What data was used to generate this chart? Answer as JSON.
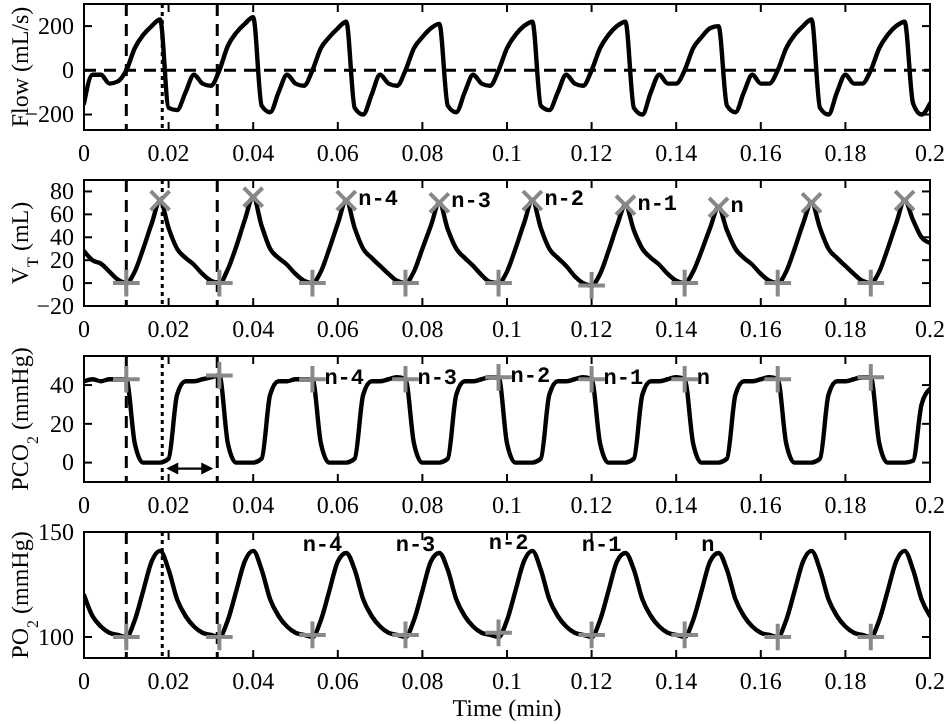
{
  "chart_data": [
    {
      "type": "line",
      "ylabel": "Flow (mL/s)",
      "xlim": [
        0,
        0.2
      ],
      "xticks": [
        0,
        0.02,
        0.04,
        0.06,
        0.08,
        0.1,
        0.12,
        0.14,
        0.16,
        0.18,
        0.2
      ],
      "ylim": [
        -270,
        300
      ],
      "yticks": [
        -200,
        0,
        200
      ],
      "grid": false,
      "x": [
        0,
        0.002,
        0.004,
        0.006,
        0.008,
        0.01,
        0.012,
        0.014,
        0.016,
        0.018,
        0.02,
        0.022,
        0.024,
        0.026,
        0.028,
        0.03,
        0.032,
        0.034,
        0.036,
        0.038,
        0.04,
        0.042,
        0.044,
        0.046,
        0.048,
        0.05,
        0.052,
        0.054,
        0.056,
        0.058,
        0.06,
        0.062,
        0.064,
        0.066,
        0.068,
        0.07,
        0.072,
        0.074,
        0.076,
        0.078,
        0.08,
        0.082,
        0.084,
        0.086,
        0.088,
        0.09,
        0.092,
        0.094,
        0.096,
        0.098,
        0.1,
        0.102,
        0.104,
        0.106,
        0.108,
        0.11,
        0.112,
        0.114,
        0.116,
        0.118,
        0.12,
        0.122,
        0.124,
        0.126,
        0.128,
        0.13,
        0.132,
        0.134,
        0.136,
        0.138,
        0.14,
        0.142,
        0.144,
        0.146,
        0.148,
        0.15,
        0.152,
        0.154,
        0.156,
        0.158,
        0.16,
        0.162,
        0.164,
        0.166,
        0.168,
        0.17,
        0.172,
        0.174,
        0.176,
        0.178,
        0.18,
        0.182,
        0.184,
        0.186,
        0.188,
        0.19,
        0.192,
        0.194,
        0.196,
        0.198,
        0.2
      ],
      "series": [
        {
          "color": "#000000",
          "line_style": "solid",
          "values": [
            -150,
            -20,
            -20,
            -60,
            -50,
            0,
            100,
            160,
            200,
            230,
            -170,
            -180,
            -100,
            -20,
            -60,
            -70,
            0,
            110,
            170,
            210,
            240,
            -160,
            -190,
            -100,
            -20,
            -60,
            -70,
            0,
            100,
            150,
            190,
            220,
            -170,
            -200,
            -110,
            -20,
            -60,
            -70,
            0,
            100,
            150,
            190,
            210,
            -160,
            -190,
            -100,
            -20,
            -60,
            -70,
            0,
            100,
            160,
            200,
            220,
            -160,
            -180,
            -100,
            -20,
            -60,
            -70,
            0,
            100,
            160,
            200,
            220,
            -170,
            -200,
            -100,
            -20,
            -60,
            -60,
            0,
            100,
            150,
            190,
            200,
            -160,
            -190,
            -100,
            -20,
            -60,
            -60,
            0,
            100,
            160,
            200,
            230,
            -170,
            -200,
            -100,
            -20,
            -60,
            -60,
            0,
            100,
            160,
            200,
            220,
            -150,
            -200,
            -150
          ]
        }
      ],
      "ref_lines": [
        {
          "axis": "x",
          "value": 0.01,
          "line_style": "dashed",
          "color": "#000000"
        },
        {
          "axis": "x",
          "value": 0.0185,
          "line_style": "dotted",
          "color": "#000000"
        },
        {
          "axis": "x",
          "value": 0.0315,
          "line_style": "dashed",
          "color": "#000000"
        },
        {
          "axis": "y",
          "value": 0,
          "line_style": "dashed",
          "color": "#000000"
        }
      ]
    },
    {
      "type": "line",
      "ylabel": "V$_{T}$ (mL)",
      "xlim": [
        0,
        0.2
      ],
      "xticks": [
        0,
        0.02,
        0.04,
        0.06,
        0.08,
        0.1,
        0.12,
        0.14,
        0.16,
        0.18,
        0.2
      ],
      "ylim": [
        -20,
        90
      ],
      "yticks": [
        -20,
        0,
        20,
        40,
        60,
        80
      ],
      "grid": false,
      "x": [
        0,
        0.002,
        0.004,
        0.006,
        0.008,
        0.01,
        0.012,
        0.014,
        0.016,
        0.018,
        0.02,
        0.022,
        0.024,
        0.026,
        0.028,
        0.03,
        0.032,
        0.034,
        0.036,
        0.038,
        0.04,
        0.042,
        0.044,
        0.046,
        0.048,
        0.05,
        0.052,
        0.054,
        0.056,
        0.058,
        0.06,
        0.062,
        0.064,
        0.066,
        0.068,
        0.07,
        0.072,
        0.074,
        0.076,
        0.078,
        0.08,
        0.082,
        0.084,
        0.086,
        0.088,
        0.09,
        0.092,
        0.094,
        0.096,
        0.098,
        0.1,
        0.102,
        0.104,
        0.106,
        0.108,
        0.11,
        0.112,
        0.114,
        0.116,
        0.118,
        0.12,
        0.122,
        0.124,
        0.126,
        0.128,
        0.13,
        0.132,
        0.134,
        0.136,
        0.138,
        0.14,
        0.142,
        0.144,
        0.146,
        0.148,
        0.15,
        0.152,
        0.154,
        0.156,
        0.158,
        0.16,
        0.162,
        0.164,
        0.166,
        0.168,
        0.17,
        0.172,
        0.174,
        0.176,
        0.178,
        0.18,
        0.182,
        0.184,
        0.186,
        0.188,
        0.19,
        0.192,
        0.194,
        0.196,
        0.198,
        0.2
      ],
      "series": [
        {
          "color": "#000000",
          "line_style": "solid",
          "values": [
            28,
            20,
            17,
            10,
            3,
            0,
            10,
            30,
            52,
            72,
            48,
            30,
            22,
            16,
            8,
            2,
            0,
            12,
            32,
            55,
            75,
            50,
            30,
            22,
            16,
            8,
            2,
            0,
            10,
            30,
            52,
            72,
            48,
            30,
            22,
            15,
            8,
            2,
            0,
            10,
            30,
            50,
            70,
            47,
            30,
            22,
            15,
            7,
            1,
            0,
            10,
            30,
            52,
            72,
            48,
            30,
            22,
            15,
            6,
            0,
            -2,
            8,
            28,
            50,
            68,
            46,
            30,
            22,
            16,
            8,
            2,
            0,
            10,
            28,
            48,
            66,
            46,
            30,
            22,
            16,
            8,
            2,
            0,
            10,
            30,
            52,
            70,
            48,
            30,
            22,
            15,
            8,
            2,
            0,
            10,
            30,
            52,
            72,
            55,
            40,
            35
          ]
        },
        {
          "type": "scatter",
          "color": "#888888",
          "marker": "cross",
          "x": [
            0.018,
            0.04,
            0.062,
            0.084,
            0.106,
            0.128,
            0.15,
            0.172,
            0.194
          ],
          "values": [
            72,
            75,
            72,
            70,
            72,
            68,
            66,
            70,
            72
          ]
        },
        {
          "type": "scatter",
          "color": "#888888",
          "marker": "plus",
          "x": [
            0.01,
            0.032,
            0.054,
            0.076,
            0.098,
            0.12,
            0.142,
            0.164,
            0.186
          ],
          "values": [
            0,
            0,
            0,
            0,
            0,
            -2,
            0,
            0,
            0
          ]
        }
      ],
      "ref_lines": [
        {
          "axis": "x",
          "value": 0.01,
          "line_style": "dashed",
          "color": "#000000"
        },
        {
          "axis": "x",
          "value": 0.0185,
          "line_style": "dotted",
          "color": "#000000"
        },
        {
          "axis": "x",
          "value": 0.0315,
          "line_style": "dashed",
          "color": "#000000"
        }
      ],
      "annotations": [
        {
          "text": "n-4",
          "x": 0.062,
          "y": 72
        },
        {
          "text": "n-3",
          "x": 0.084,
          "y": 70
        },
        {
          "text": "n-2",
          "x": 0.106,
          "y": 72
        },
        {
          "text": "n-1",
          "x": 0.128,
          "y": 68
        },
        {
          "text": "n",
          "x": 0.15,
          "y": 66
        }
      ]
    },
    {
      "type": "line",
      "ylabel": "PCO$_{2}$ (mmHg)",
      "xlim": [
        0,
        0.2
      ],
      "xticks": [
        0,
        0.02,
        0.04,
        0.06,
        0.08,
        0.1,
        0.12,
        0.14,
        0.16,
        0.18,
        0.2
      ],
      "ylim": [
        -10,
        55
      ],
      "yticks": [
        0,
        20,
        40
      ],
      "grid": false,
      "x": [
        0,
        0.002,
        0.004,
        0.006,
        0.008,
        0.01,
        0.012,
        0.014,
        0.016,
        0.018,
        0.02,
        0.022,
        0.024,
        0.026,
        0.028,
        0.03,
        0.032,
        0.034,
        0.036,
        0.038,
        0.04,
        0.042,
        0.044,
        0.046,
        0.048,
        0.05,
        0.052,
        0.054,
        0.056,
        0.058,
        0.06,
        0.062,
        0.064,
        0.066,
        0.068,
        0.07,
        0.072,
        0.074,
        0.076,
        0.078,
        0.08,
        0.082,
        0.084,
        0.086,
        0.088,
        0.09,
        0.092,
        0.094,
        0.096,
        0.098,
        0.1,
        0.102,
        0.104,
        0.106,
        0.108,
        0.11,
        0.112,
        0.114,
        0.116,
        0.118,
        0.12,
        0.122,
        0.124,
        0.126,
        0.128,
        0.13,
        0.132,
        0.134,
        0.136,
        0.138,
        0.14,
        0.142,
        0.144,
        0.146,
        0.148,
        0.15,
        0.152,
        0.154,
        0.156,
        0.158,
        0.16,
        0.162,
        0.164,
        0.166,
        0.168,
        0.17,
        0.172,
        0.174,
        0.176,
        0.178,
        0.18,
        0.182,
        0.184,
        0.186,
        0.188,
        0.19,
        0.192,
        0.194,
        0.196,
        0.198,
        0.2
      ],
      "series": [
        {
          "color": "#000000",
          "line_style": "solid",
          "values": [
            42,
            43,
            42,
            43,
            43,
            43,
            10,
            0,
            0,
            0,
            2,
            35,
            42,
            42,
            43,
            44,
            45,
            10,
            0,
            0,
            0,
            2,
            35,
            42,
            42,
            43,
            43,
            43,
            10,
            0,
            0,
            0,
            2,
            35,
            42,
            42,
            43,
            44,
            43,
            10,
            0,
            0,
            0,
            2,
            35,
            42,
            42,
            43,
            44,
            44,
            10,
            0,
            0,
            0,
            2,
            35,
            42,
            42,
            43,
            44,
            43,
            10,
            0,
            0,
            0,
            2,
            35,
            42,
            42,
            43,
            44,
            43,
            10,
            0,
            0,
            0,
            2,
            35,
            42,
            42,
            43,
            44,
            43,
            10,
            0,
            0,
            0,
            2,
            35,
            42,
            42,
            43,
            44,
            44,
            10,
            0,
            0,
            0,
            1,
            30,
            38
          ]
        },
        {
          "type": "scatter",
          "color": "#888888",
          "marker": "plus",
          "x": [
            0.01,
            0.032,
            0.054,
            0.076,
            0.098,
            0.12,
            0.142,
            0.164,
            0.186
          ],
          "values": [
            43,
            45,
            43,
            43,
            44,
            43,
            43,
            43,
            44
          ]
        }
      ],
      "ref_lines": [
        {
          "axis": "x",
          "value": 0.01,
          "line_style": "dashed",
          "color": "#000000"
        },
        {
          "axis": "x",
          "value": 0.0185,
          "line_style": "dotted",
          "color": "#000000"
        },
        {
          "axis": "x",
          "value": 0.0315,
          "line_style": "dashed",
          "color": "#000000"
        }
      ],
      "annotations": [
        {
          "text": "n-4",
          "x": 0.054,
          "y": 43
        },
        {
          "text": "n-3",
          "x": 0.076,
          "y": 43
        },
        {
          "text": "n-2",
          "x": 0.098,
          "y": 44
        },
        {
          "text": "n-1",
          "x": 0.12,
          "y": 43
        },
        {
          "text": "n",
          "x": 0.142,
          "y": 43
        }
      ]
    },
    {
      "type": "line",
      "xlabel": "Time (min)",
      "ylabel": "PO$_{2}$ (mmHg)",
      "xlim": [
        0,
        0.2
      ],
      "xticks": [
        0,
        0.02,
        0.04,
        0.06,
        0.08,
        0.1,
        0.12,
        0.14,
        0.16,
        0.18,
        0.2
      ],
      "ylim": [
        90,
        150
      ],
      "yticks": [
        100,
        150
      ],
      "grid": false,
      "x": [
        0,
        0.002,
        0.004,
        0.006,
        0.008,
        0.01,
        0.012,
        0.014,
        0.016,
        0.018,
        0.02,
        0.022,
        0.024,
        0.026,
        0.028,
        0.03,
        0.032,
        0.034,
        0.036,
        0.038,
        0.04,
        0.042,
        0.044,
        0.046,
        0.048,
        0.05,
        0.052,
        0.054,
        0.056,
        0.058,
        0.06,
        0.062,
        0.064,
        0.066,
        0.068,
        0.07,
        0.072,
        0.074,
        0.076,
        0.078,
        0.08,
        0.082,
        0.084,
        0.086,
        0.088,
        0.09,
        0.092,
        0.094,
        0.096,
        0.098,
        0.1,
        0.102,
        0.104,
        0.106,
        0.108,
        0.11,
        0.112,
        0.114,
        0.116,
        0.118,
        0.12,
        0.122,
        0.124,
        0.126,
        0.128,
        0.13,
        0.132,
        0.134,
        0.136,
        0.138,
        0.14,
        0.142,
        0.144,
        0.146,
        0.148,
        0.15,
        0.152,
        0.154,
        0.156,
        0.158,
        0.16,
        0.162,
        0.164,
        0.166,
        0.168,
        0.17,
        0.172,
        0.174,
        0.176,
        0.178,
        0.18,
        0.182,
        0.184,
        0.186,
        0.188,
        0.19,
        0.192,
        0.194,
        0.196,
        0.198,
        0.2
      ],
      "series": [
        {
          "color": "#000000",
          "line_style": "solid",
          "values": [
            120,
            110,
            105,
            102,
            101,
            100,
            108,
            122,
            136,
            141,
            132,
            118,
            110,
            105,
            102,
            101,
            100,
            108,
            122,
            136,
            141,
            132,
            118,
            110,
            105,
            102,
            101,
            100,
            108,
            122,
            136,
            140,
            132,
            118,
            110,
            105,
            102,
            101,
            100,
            108,
            122,
            136,
            140,
            132,
            118,
            110,
            105,
            102,
            101,
            100,
            108,
            122,
            136,
            141,
            132,
            118,
            110,
            105,
            102,
            101,
            100,
            108,
            122,
            136,
            140,
            132,
            118,
            110,
            105,
            102,
            101,
            100,
            108,
            122,
            136,
            140,
            132,
            118,
            110,
            105,
            102,
            101,
            100,
            108,
            122,
            136,
            141,
            132,
            118,
            110,
            105,
            102,
            101,
            100,
            108,
            122,
            136,
            141,
            132,
            118,
            110
          ]
        },
        {
          "type": "scatter",
          "color": "#888888",
          "marker": "plus",
          "x": [
            0.01,
            0.032,
            0.054,
            0.076,
            0.098,
            0.12,
            0.142,
            0.164,
            0.186
          ],
          "values": [
            100,
            100,
            101,
            101,
            102,
            101,
            101,
            100,
            100
          ]
        }
      ],
      "ref_lines": [
        {
          "axis": "x",
          "value": 0.01,
          "line_style": "dashed",
          "color": "#000000"
        },
        {
          "axis": "x",
          "value": 0.0185,
          "line_style": "dotted",
          "color": "#000000"
        },
        {
          "axis": "x",
          "value": 0.0315,
          "line_style": "dashed",
          "color": "#000000"
        }
      ],
      "annotations": [
        {
          "text": "n-4",
          "x": 0.062,
          "y": 140
        },
        {
          "text": "n-3",
          "x": 0.084,
          "y": 140
        },
        {
          "text": "n-2",
          "x": 0.106,
          "y": 141
        },
        {
          "text": "n-1",
          "x": 0.128,
          "y": 140
        },
        {
          "text": "n",
          "x": 0.15,
          "y": 140
        }
      ]
    }
  ]
}
